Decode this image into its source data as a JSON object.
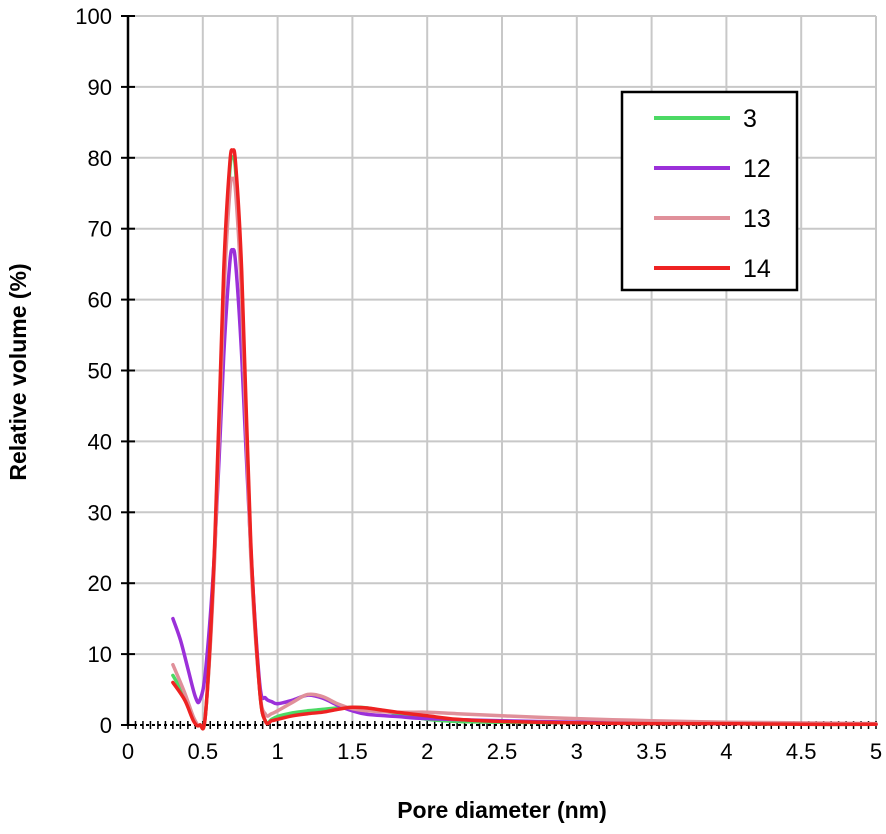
{
  "chart_data": {
    "type": "line",
    "title": "",
    "xlabel": "Pore diameter (nm)",
    "ylabel": "Relative volume (%)",
    "xlim": [
      0,
      5
    ],
    "ylim": [
      0,
      100
    ],
    "x_ticks": [
      "0",
      "0.5",
      "1",
      "1.5",
      "2",
      "2.5",
      "3",
      "3.5",
      "4",
      "4.5",
      "5"
    ],
    "y_ticks": [
      "0",
      "10",
      "20",
      "30",
      "40",
      "50",
      "60",
      "70",
      "80",
      "90",
      "100"
    ],
    "grid": true,
    "legend_position": "top-right",
    "series": [
      {
        "name": "3",
        "color": "#4cd964",
        "x": [
          0.3,
          0.38,
          0.44,
          0.48,
          0.52,
          0.58,
          0.64,
          0.68,
          0.7,
          0.72,
          0.76,
          0.82,
          0.88,
          0.92,
          0.96,
          1.0,
          1.1,
          1.2,
          1.3,
          1.4,
          1.5,
          1.6,
          1.7,
          1.8,
          2.0,
          2.2,
          2.5,
          3.0,
          3.5,
          4.0,
          4.5,
          5.0
        ],
        "y": [
          7,
          4,
          0.8,
          0,
          2,
          25,
          62,
          78,
          80,
          78,
          62,
          25,
          5,
          0.5,
          0.8,
          1.2,
          1.7,
          2.0,
          2.2,
          2.4,
          2.5,
          2.4,
          2.0,
          1.6,
          0.8,
          0.5,
          0.4,
          0.3,
          0.2,
          0.2,
          0.1,
          0.1
        ]
      },
      {
        "name": "12",
        "color": "#9b30d9",
        "x": [
          0.3,
          0.35,
          0.4,
          0.45,
          0.48,
          0.52,
          0.58,
          0.64,
          0.68,
          0.7,
          0.72,
          0.76,
          0.82,
          0.88,
          0.92,
          0.96,
          1.0,
          1.1,
          1.2,
          1.3,
          1.4,
          1.5,
          1.6,
          1.8,
          2.0,
          2.5,
          3.0,
          3.5,
          4.0,
          4.5,
          5.0
        ],
        "y": [
          15,
          12,
          8,
          4,
          3.5,
          8,
          25,
          52,
          65,
          67,
          65,
          52,
          25,
          6,
          3.8,
          3.3,
          3.0,
          3.5,
          4.2,
          3.8,
          2.8,
          2.0,
          1.5,
          1.2,
          0.9,
          0.6,
          0.4,
          0.3,
          0.2,
          0.2,
          0.1
        ]
      },
      {
        "name": "13",
        "color": "#e0909a",
        "x": [
          0.3,
          0.38,
          0.44,
          0.48,
          0.52,
          0.58,
          0.64,
          0.68,
          0.7,
          0.72,
          0.76,
          0.82,
          0.88,
          0.92,
          0.96,
          1.0,
          1.1,
          1.2,
          1.3,
          1.4,
          1.5,
          1.6,
          1.8,
          2.0,
          2.2,
          2.5,
          3.0,
          3.5,
          4.0,
          4.5,
          5.0
        ],
        "y": [
          8.5,
          4.5,
          1,
          0,
          2,
          24,
          60,
          75,
          77,
          75,
          60,
          24,
          5,
          1.5,
          1.6,
          2.0,
          3.2,
          4.3,
          4.0,
          3.0,
          2.3,
          2.0,
          1.8,
          1.8,
          1.6,
          1.3,
          0.9,
          0.6,
          0.4,
          0.3,
          0.2
        ]
      },
      {
        "name": "14",
        "color": "#ee2222",
        "x": [
          0.3,
          0.38,
          0.44,
          0.48,
          0.52,
          0.58,
          0.64,
          0.68,
          0.7,
          0.72,
          0.76,
          0.82,
          0.88,
          0.92,
          0.96,
          1.0,
          1.1,
          1.2,
          1.3,
          1.4,
          1.5,
          1.6,
          1.7,
          1.8,
          2.0,
          2.2,
          2.5,
          3.0,
          3.5,
          4.0,
          4.5,
          5.0
        ],
        "y": [
          6,
          3.5,
          0.5,
          0,
          2,
          26,
          64,
          79,
          81,
          79,
          64,
          26,
          5,
          0.5,
          0.6,
          0.8,
          1.3,
          1.6,
          1.8,
          2.2,
          2.5,
          2.4,
          2.1,
          1.8,
          1.3,
          0.8,
          0.5,
          0.3,
          0.2,
          0.2,
          0.1,
          0.1
        ]
      }
    ]
  }
}
